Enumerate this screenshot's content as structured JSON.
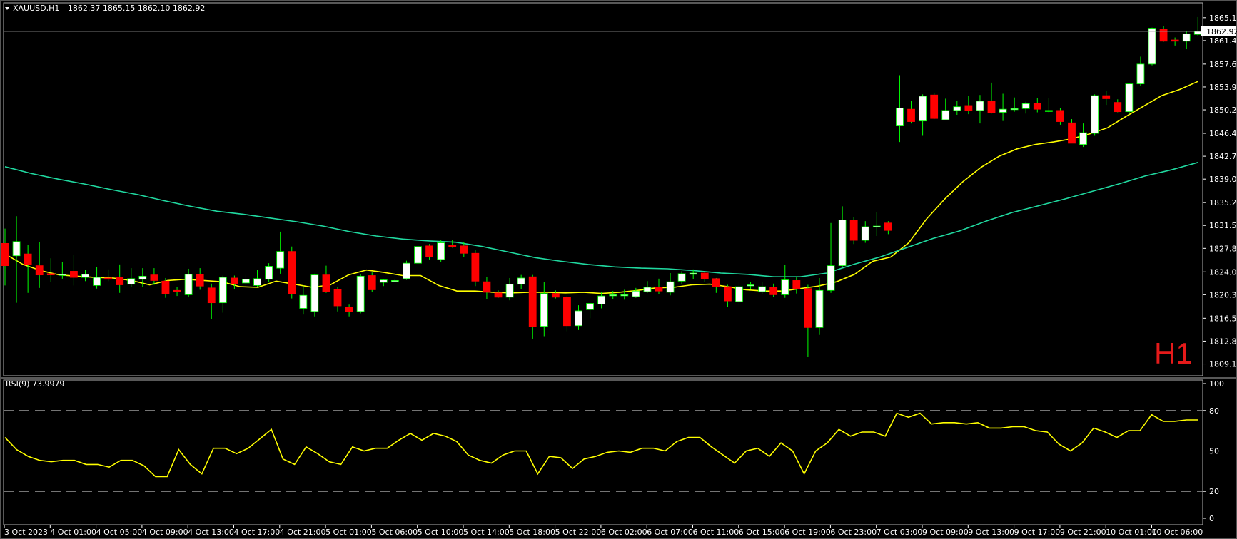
{
  "header": {
    "symbol": "XAUUSD,H1",
    "ohlc": "1862.37 1865.15 1862.10 1862.92"
  },
  "timeframe_label": "H1",
  "current_price_label": "1862.92",
  "rsi_header": "RSI(9) 73.9979",
  "colors": {
    "bull": "#ffffff",
    "bear": "#ff0000",
    "wick": "#00ff00",
    "ma_fast": "#ffff00",
    "ma_slow": "#20d9a0",
    "rsi": "#ffff00",
    "timeframe": "#e51a1a",
    "grid": "#9a9a9a"
  },
  "chart_data": [
    {
      "type": "candlestick",
      "title": "XAUUSD,H1",
      "ylim": [
        1807.2,
        1867.5
      ],
      "y_ticks": [
        "1865.10",
        "1861.40",
        "1857.60",
        "1853.90",
        "1850.20",
        "1846.40",
        "1842.70",
        "1839.00",
        "1835.20",
        "1831.50",
        "1827.80",
        "1824.00",
        "1820.30",
        "1816.50",
        "1812.80",
        "1809.10"
      ],
      "x_ticks": [
        "3 Oct 2023",
        "4 Oct 01:00",
        "4 Oct 05:00",
        "4 Oct 09:00",
        "4 Oct 13:00",
        "4 Oct 17:00",
        "4 Oct 21:00",
        "5 Oct 01:00",
        "5 Oct 06:00",
        "5 Oct 10:00",
        "5 Oct 14:00",
        "5 Oct 18:00",
        "5 Oct 22:00",
        "6 Oct 02:00",
        "6 Oct 07:00",
        "6 Oct 11:00",
        "6 Oct 15:00",
        "6 Oct 19:00",
        "6 Oct 23:00",
        "7 Oct 03:00",
        "9 Oct 09:00",
        "9 Oct 13:00",
        "9 Oct 17:00",
        "9 Oct 21:00",
        "10 Oct 01:00",
        "10 Oct 06:00"
      ],
      "candles": [
        [
          1828.6,
          1831.0,
          1821.8,
          1825.0
        ],
        [
          1826.6,
          1833.0,
          1819.0,
          1828.9
        ],
        [
          1826.9,
          1828.3,
          1820.6,
          1825.2
        ],
        [
          1825.0,
          1828.8,
          1821.4,
          1823.5
        ],
        [
          1823.7,
          1826.2,
          1822.3,
          1823.5
        ],
        [
          1823.6,
          1825.6,
          1822.9,
          1823.6
        ],
        [
          1824.1,
          1826.7,
          1821.8,
          1823.1
        ],
        [
          1823.1,
          1824.3,
          1822.5,
          1823.6
        ],
        [
          1821.8,
          1824.8,
          1821.3,
          1823.1
        ],
        [
          1823.0,
          1824.4,
          1822.5,
          1822.8
        ],
        [
          1823.1,
          1825.2,
          1820.6,
          1821.9
        ],
        [
          1822.0,
          1824.6,
          1821.5,
          1822.9
        ],
        [
          1822.8,
          1824.6,
          1821.5,
          1823.3
        ],
        [
          1823.5,
          1824.6,
          1821.9,
          1822.6
        ],
        [
          1822.5,
          1823.0,
          1819.8,
          1820.4
        ],
        [
          1821.0,
          1821.6,
          1820.1,
          1820.9
        ],
        [
          1820.3,
          1824.5,
          1820.0,
          1823.6
        ],
        [
          1823.6,
          1824.6,
          1821.1,
          1821.7
        ],
        [
          1821.4,
          1822.1,
          1816.4,
          1819.0
        ],
        [
          1819.0,
          1823.4,
          1817.4,
          1823.1
        ],
        [
          1823.0,
          1823.4,
          1821.2,
          1822.1
        ],
        [
          1822.2,
          1823.5,
          1821.8,
          1822.8
        ],
        [
          1821.8,
          1824.3,
          1821.5,
          1822.9
        ],
        [
          1822.8,
          1825.4,
          1822.3,
          1824.9
        ],
        [
          1824.6,
          1830.5,
          1823.7,
          1827.3
        ],
        [
          1827.3,
          1828.1,
          1819.7,
          1820.4
        ],
        [
          1818.1,
          1821.8,
          1817.1,
          1820.2
        ],
        [
          1817.6,
          1823.7,
          1816.8,
          1823.5
        ],
        [
          1823.5,
          1825.0,
          1820.6,
          1820.8
        ],
        [
          1821.2,
          1821.5,
          1817.6,
          1818.5
        ],
        [
          1818.3,
          1818.7,
          1816.8,
          1817.6
        ],
        [
          1817.6,
          1823.6,
          1817.3,
          1823.3
        ],
        [
          1823.4,
          1823.9,
          1820.7,
          1821.1
        ],
        [
          1822.3,
          1822.8,
          1821.7,
          1822.7
        ],
        [
          1822.5,
          1822.9,
          1822.3,
          1822.6
        ],
        [
          1822.9,
          1825.8,
          1822.7,
          1825.4
        ],
        [
          1825.4,
          1828.5,
          1825.2,
          1828.1
        ],
        [
          1828.2,
          1828.5,
          1826.0,
          1826.4
        ],
        [
          1826.0,
          1829.1,
          1825.6,
          1828.7
        ],
        [
          1828.3,
          1829.2,
          1827.9,
          1828.1
        ],
        [
          1828.2,
          1828.8,
          1826.4,
          1827.0
        ],
        [
          1827.0,
          1827.5,
          1821.7,
          1822.5
        ],
        [
          1822.4,
          1823.2,
          1819.6,
          1820.7
        ],
        [
          1820.6,
          1821.0,
          1819.8,
          1819.9
        ],
        [
          1819.9,
          1823.0,
          1819.4,
          1822.0
        ],
        [
          1822.0,
          1823.5,
          1821.2,
          1823.0
        ],
        [
          1823.2,
          1823.5,
          1813.2,
          1815.2
        ],
        [
          1815.2,
          1822.3,
          1813.6,
          1820.5
        ],
        [
          1820.5,
          1821.0,
          1819.7,
          1819.9
        ],
        [
          1819.9,
          1820.1,
          1814.4,
          1815.3
        ],
        [
          1815.3,
          1818.6,
          1814.6,
          1817.7
        ],
        [
          1817.9,
          1819.0,
          1816.5,
          1818.9
        ],
        [
          1818.8,
          1820.7,
          1818.1,
          1820.1
        ],
        [
          1820.2,
          1820.9,
          1819.6,
          1820.3
        ],
        [
          1820.2,
          1821.1,
          1819.5,
          1820.3
        ],
        [
          1820.0,
          1821.4,
          1819.8,
          1820.9
        ],
        [
          1820.8,
          1822.5,
          1820.6,
          1821.5
        ],
        [
          1821.5,
          1822.9,
          1820.4,
          1820.9
        ],
        [
          1820.7,
          1823.8,
          1820.2,
          1822.4
        ],
        [
          1822.5,
          1824.1,
          1822.0,
          1823.7
        ],
        [
          1823.6,
          1824.4,
          1822.8,
          1823.8
        ],
        [
          1823.8,
          1824.0,
          1822.3,
          1822.9
        ],
        [
          1822.9,
          1823.0,
          1820.6,
          1821.6
        ],
        [
          1821.6,
          1821.9,
          1818.3,
          1819.3
        ],
        [
          1819.2,
          1822.3,
          1818.6,
          1821.6
        ],
        [
          1821.8,
          1822.3,
          1821.2,
          1821.9
        ],
        [
          1820.8,
          1822.3,
          1820.4,
          1821.6
        ],
        [
          1821.5,
          1822.1,
          1819.9,
          1820.3
        ],
        [
          1820.3,
          1825.1,
          1819.8,
          1822.7
        ],
        [
          1822.6,
          1823.1,
          1820.5,
          1821.3
        ],
        [
          1821.3,
          1821.9,
          1810.2,
          1815.0
        ],
        [
          1815.0,
          1823.0,
          1813.8,
          1821.0
        ],
        [
          1821.0,
          1831.9,
          1820.6,
          1825.0
        ],
        [
          1825.0,
          1834.6,
          1824.8,
          1832.4
        ],
        [
          1832.4,
          1832.8,
          1828.5,
          1829.1
        ],
        [
          1829.1,
          1832.2,
          1828.7,
          1831.3
        ],
        [
          1831.3,
          1833.7,
          1829.8,
          1831.4
        ],
        [
          1831.9,
          1832.2,
          1830.1,
          1830.7
        ],
        [
          1847.6,
          1855.8,
          1845.0,
          1850.5
        ],
        [
          1850.3,
          1851.7,
          1848.0,
          1848.3
        ],
        [
          1848.4,
          1852.7,
          1846.0,
          1852.4
        ],
        [
          1852.6,
          1852.9,
          1848.7,
          1848.8
        ],
        [
          1848.6,
          1852.0,
          1848.5,
          1850.1
        ],
        [
          1850.1,
          1851.6,
          1849.4,
          1850.7
        ],
        [
          1850.9,
          1852.5,
          1849.5,
          1850.1
        ],
        [
          1850.1,
          1852.6,
          1848.0,
          1851.6
        ],
        [
          1851.6,
          1854.6,
          1849.6,
          1849.7
        ],
        [
          1849.8,
          1852.8,
          1848.4,
          1850.3
        ],
        [
          1850.3,
          1852.2,
          1849.9,
          1850.4
        ],
        [
          1850.4,
          1851.5,
          1849.6,
          1851.2
        ],
        [
          1851.3,
          1852.1,
          1849.8,
          1850.3
        ],
        [
          1850.0,
          1852.1,
          1849.8,
          1850.1
        ],
        [
          1850.1,
          1850.5,
          1847.8,
          1848.3
        ],
        [
          1848.1,
          1848.7,
          1844.8,
          1844.8
        ],
        [
          1844.6,
          1848.0,
          1844.2,
          1846.5
        ],
        [
          1846.4,
          1852.7,
          1846.0,
          1852.5
        ],
        [
          1852.5,
          1853.3,
          1851.0,
          1852.0
        ],
        [
          1851.4,
          1851.9,
          1849.8,
          1849.9
        ],
        [
          1849.9,
          1854.5,
          1849.5,
          1854.4
        ],
        [
          1854.4,
          1858.8,
          1854.1,
          1857.6
        ],
        [
          1857.6,
          1863.5,
          1857.4,
          1863.4
        ],
        [
          1863.3,
          1863.7,
          1861.2,
          1861.3
        ],
        [
          1861.5,
          1861.9,
          1860.6,
          1861.3
        ],
        [
          1861.3,
          1863.0,
          1860.0,
          1862.5
        ],
        [
          1862.4,
          1865.2,
          1862.1,
          1862.9
        ]
      ],
      "series": [
        {
          "values_ref": "ma_fast",
          "points": [
            1826.9,
            1825.2,
            1824.2,
            1823.5,
            1823.3,
            1823.1,
            1823.0,
            1822.6,
            1821.9,
            1822.6,
            1822.8,
            1822.6,
            1822.4,
            1821.6,
            1821.5,
            1822.5,
            1822.0,
            1821.5,
            1821.9,
            1823.5,
            1824.3,
            1823.9,
            1823.4,
            1823.4,
            1821.8,
            1820.9,
            1820.9,
            1820.7,
            1820.6,
            1820.7,
            1820.7,
            1820.6,
            1820.7,
            1820.5,
            1820.7,
            1821.0,
            1821.4,
            1821.5,
            1821.9,
            1822.0,
            1821.6,
            1821.1,
            1820.9,
            1820.9,
            1821.3,
            1821.7,
            1822.4,
            1823.6,
            1825.7,
            1826.4,
            1828.7,
            1832.6,
            1835.8,
            1838.6,
            1840.9,
            1842.7,
            1843.9,
            1844.6,
            1845.0,
            1845.5,
            1846.3,
            1847.3,
            1849.1,
            1850.8,
            1852.5,
            1853.5,
            1854.8
          ]
        },
        {
          "values_ref": "ma_slow",
          "points": [
            1841.0,
            1839.9,
            1839.0,
            1838.2,
            1837.3,
            1836.5,
            1835.5,
            1834.6,
            1833.8,
            1833.3,
            1832.7,
            1832.1,
            1831.4,
            1830.5,
            1829.8,
            1829.3,
            1829.0,
            1828.8,
            1828.1,
            1827.2,
            1826.3,
            1825.7,
            1825.2,
            1824.8,
            1824.6,
            1824.5,
            1824.2,
            1823.8,
            1823.6,
            1823.2,
            1823.2,
            1823.8,
            1825.2,
            1826.4,
            1827.9,
            1829.4,
            1830.6,
            1832.2,
            1833.6,
            1834.7,
            1835.8,
            1837.0,
            1838.2,
            1839.5,
            1840.5,
            1841.7
          ]
        }
      ]
    },
    {
      "type": "line",
      "title": "RSI(9) 73.9979",
      "ylim": [
        0,
        100
      ],
      "y_ticks": [
        "100",
        "80",
        "50",
        "20",
        "0"
      ],
      "levels": [
        80,
        50,
        20
      ],
      "values": [
        60,
        51,
        46,
        43,
        42,
        43,
        43,
        40,
        40,
        38,
        43,
        43,
        39,
        31,
        31,
        51,
        40,
        33,
        52,
        52,
        48,
        52,
        59,
        66,
        44,
        40,
        53,
        48,
        42,
        40,
        53,
        50,
        52,
        52,
        58,
        63,
        58,
        63,
        61,
        57,
        47,
        43,
        41,
        47,
        50,
        50,
        33,
        46,
        45,
        37,
        44,
        46,
        49,
        50,
        49,
        52,
        52,
        50,
        57,
        60,
        60,
        53,
        47,
        41,
        50,
        52,
        46,
        56,
        50,
        33,
        50,
        56,
        66,
        61,
        64,
        64,
        61,
        78,
        75,
        78,
        70,
        71,
        71,
        70,
        71,
        67,
        67,
        68,
        68,
        65,
        64,
        55,
        50,
        56,
        67,
        64,
        60,
        65,
        65,
        77,
        72,
        72,
        73,
        73
      ]
    }
  ]
}
